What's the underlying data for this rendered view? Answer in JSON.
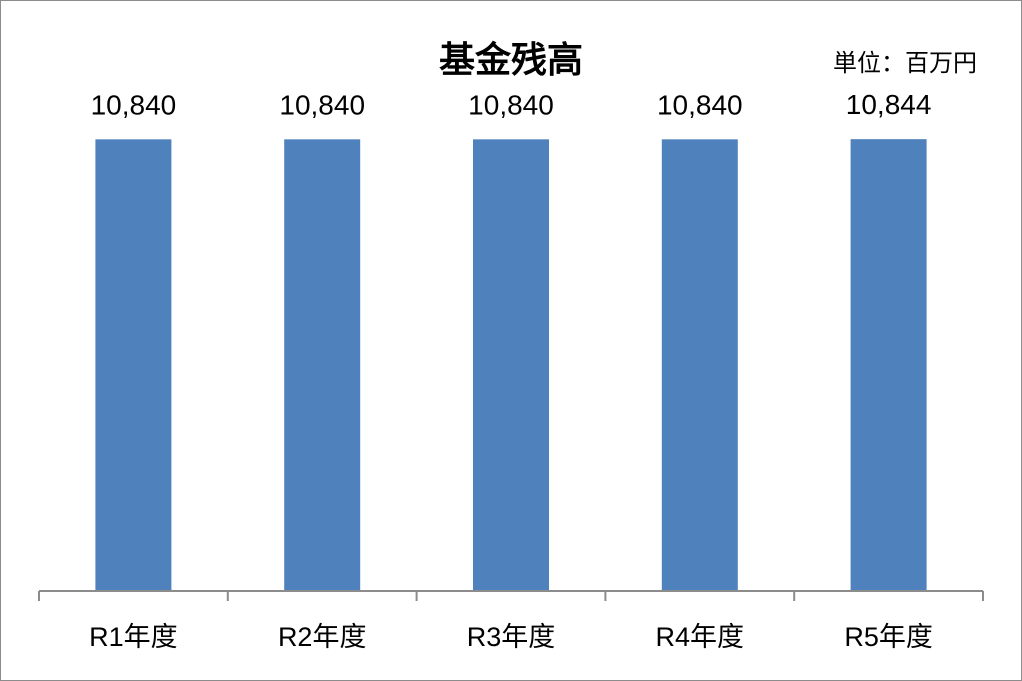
{
  "chart_data": {
    "type": "bar",
    "title": "基金残高",
    "unit_label": "単位：百万円",
    "categories": [
      "R1年度",
      "R2年度",
      "R3年度",
      "R4年度",
      "R5年度"
    ],
    "values": [
      10840,
      10840,
      10840,
      10840,
      10844
    ],
    "data_labels": [
      "10,840",
      "10,840",
      "10,840",
      "10,840",
      "10,844"
    ],
    "bar_color": "#4f81bd",
    "axis_color": "#8c8c8c",
    "ylim": [
      0,
      12000
    ],
    "grid": false,
    "legend": "none"
  }
}
